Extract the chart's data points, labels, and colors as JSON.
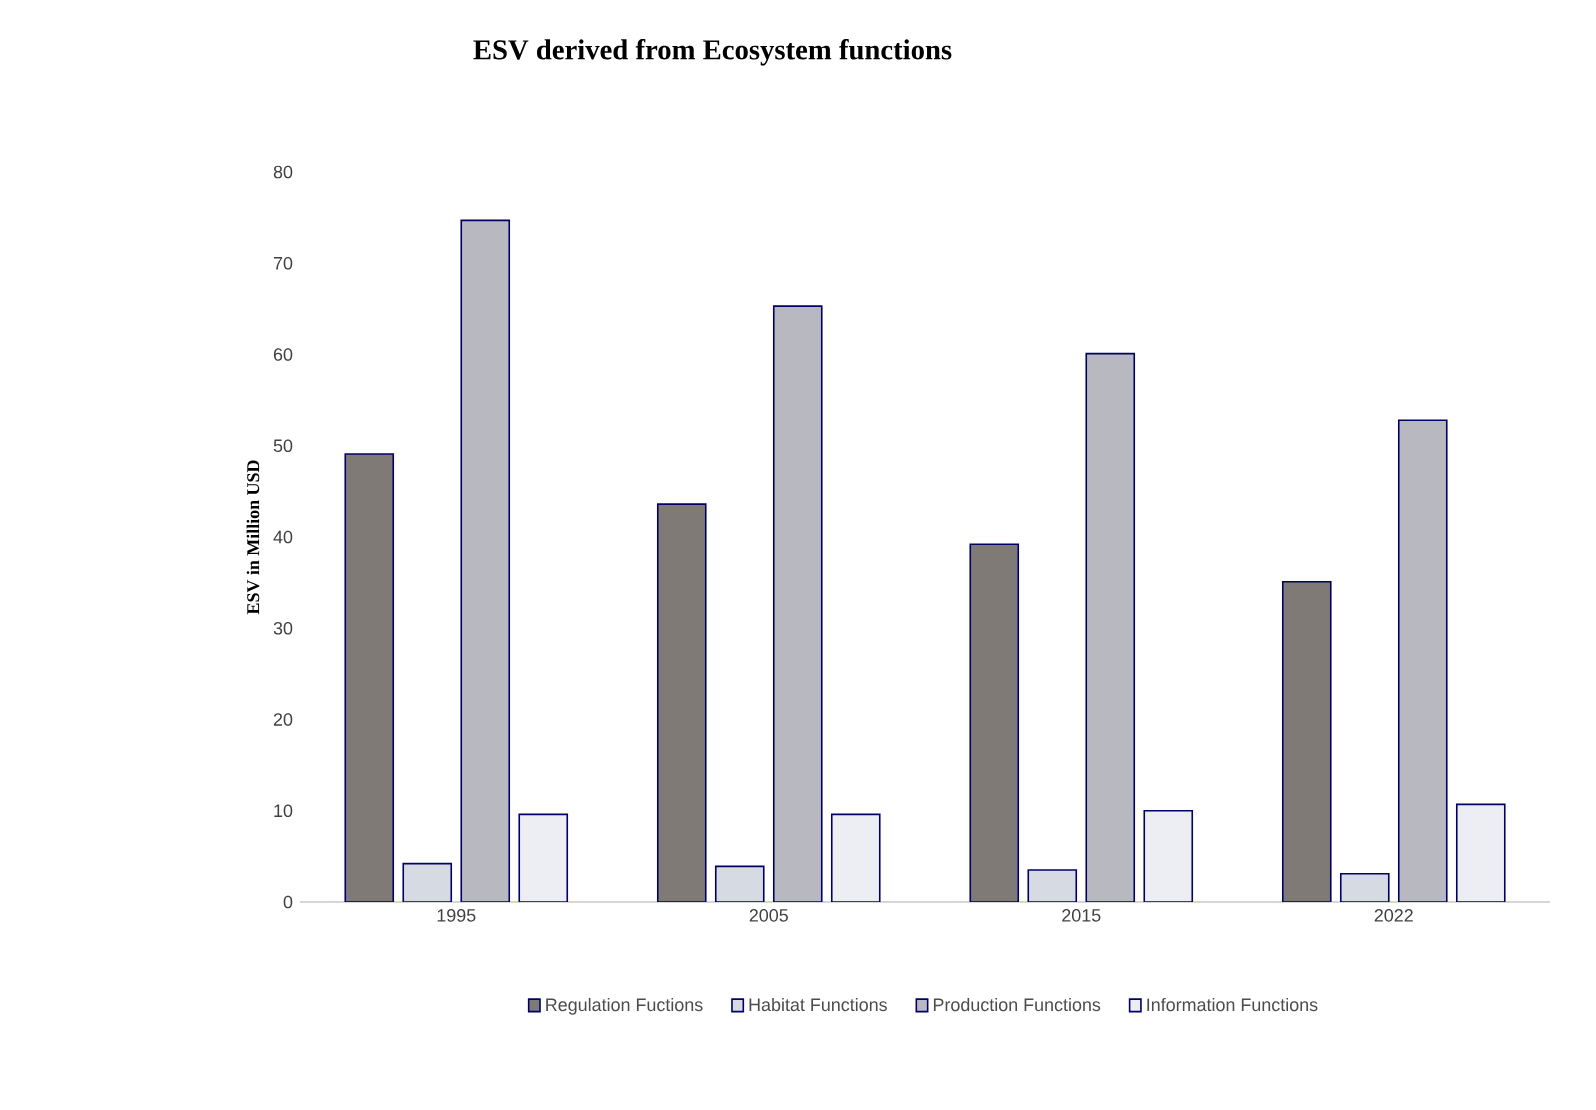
{
  "chart_data": {
    "type": "bar",
    "title": "ESV derived from Ecosystem functions",
    "ylabel": "ESV in Million USD",
    "categories": [
      "1995",
      "2005",
      "2015",
      "2022"
    ],
    "series": [
      {
        "name": "Regulation Fuctions",
        "color": "#7f7a76",
        "values": [
          49.1,
          43.6,
          39.2,
          35.1
        ]
      },
      {
        "name": "Habitat Functions",
        "color": "#d6dae3",
        "values": [
          4.2,
          3.9,
          3.5,
          3.1
        ]
      },
      {
        "name": "Production Functions",
        "color": "#b8b8c0",
        "values": [
          74.7,
          65.3,
          60.1,
          52.8
        ]
      },
      {
        "name": "Information Functions",
        "color": "#eceef3",
        "values": [
          9.6,
          9.6,
          10,
          10.7
        ]
      }
    ],
    "ylim": [
      0,
      80
    ],
    "yticks": [
      0,
      10,
      20,
      30,
      40,
      50,
      60,
      70,
      80
    ],
    "grid": false,
    "legend": "bottom"
  }
}
